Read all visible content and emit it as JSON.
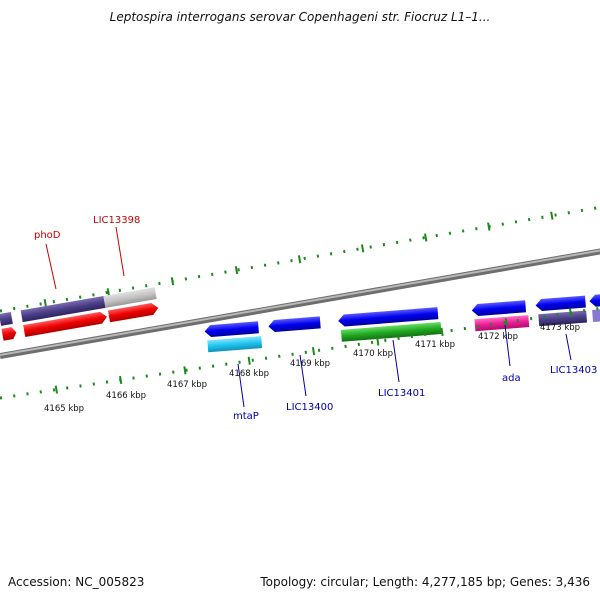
{
  "header": {
    "title": "Leptospira interrogans serovar Copenhageni str. Fiocruz L1–1..."
  },
  "footer": {
    "accession": "Accession: NC_005823",
    "topology": "Topology: circular; Length: 4,277,185 bp; Genes: 3,436"
  },
  "colors": {
    "backbone": "#8a8a8a",
    "tick": "#1e8a1e",
    "forward_label": "#cc0000",
    "reverse_label": "#0000aa",
    "kbp_label": "#111111"
  },
  "kbp_ticks": [
    "4165 kbp",
    "4166 kbp",
    "4167 kbp",
    "4168 kbp",
    "4169 kbp",
    "4170 kbp",
    "4171 kbp",
    "4172 kbp",
    "4173 kbp"
  ],
  "genes": [
    {
      "name": "phoD",
      "strand": "forward"
    },
    {
      "name": "LIC13398",
      "strand": "forward"
    },
    {
      "name": "mtaP",
      "strand": "reverse"
    },
    {
      "name": "LIC13400",
      "strand": "reverse"
    },
    {
      "name": "LIC13401",
      "strand": "reverse"
    },
    {
      "name": "ada",
      "strand": "reverse"
    },
    {
      "name": "LIC13403",
      "strand": "reverse"
    }
  ]
}
